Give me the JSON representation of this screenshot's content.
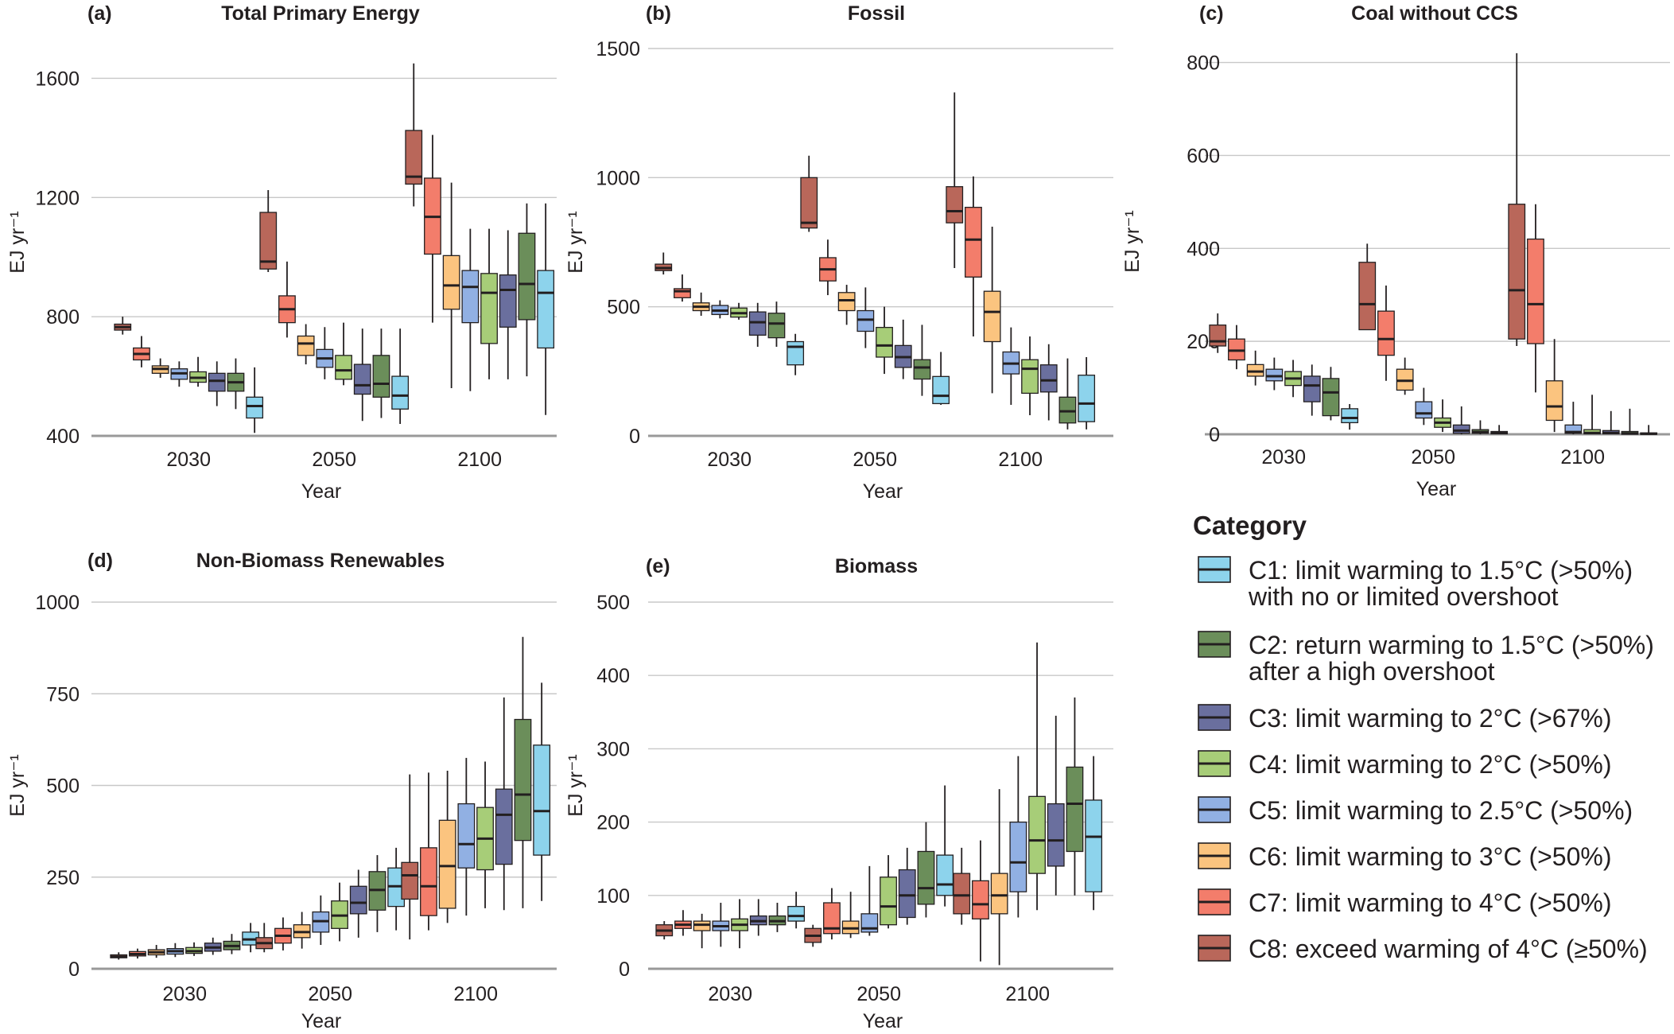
{
  "legend": {
    "title": "Category",
    "items": [
      {
        "code": "C1",
        "line1": "C1: limit warming to 1.5°C (>50%)",
        "line2": "with no or limited overshoot",
        "color": "#8dd3ec"
      },
      {
        "code": "C2",
        "line1": "C2: return warming to 1.5°C (>50%)",
        "line2": "after a high overshoot",
        "color": "#6b8e5a"
      },
      {
        "code": "C3",
        "line1": "C3: limit warming to 2°C (>67%)",
        "line2": "",
        "color": "#6a6f9e"
      },
      {
        "code": "C4",
        "line1": "C4: limit warming to 2°C (>50%)",
        "line2": "",
        "color": "#a7cd78"
      },
      {
        "code": "C5",
        "line1": "C5: limit warming to 2.5°C (>50%)",
        "line2": "",
        "color": "#91b0e3"
      },
      {
        "code": "C6",
        "line1": "C6: limit warming to 3°C (>50%)",
        "line2": "",
        "color": "#fbc47f"
      },
      {
        "code": "C7",
        "line1": "C7: limit warming to 4°C (>50%)",
        "line2": "",
        "color": "#f37d6b"
      },
      {
        "code": "C8",
        "line1": "C8: exceed warming of 4°C (≥50%)",
        "line2": "",
        "color": "#b9675a"
      }
    ]
  },
  "chart_data": [
    {
      "type": "box",
      "letter": "(a)",
      "title": "Total Primary Energy",
      "xlabel": "Year",
      "ylabel": "EJ yr⁻¹",
      "ylim": [
        400,
        1700
      ],
      "yticks": [
        400,
        800,
        1200,
        1600
      ],
      "years": [
        "2030",
        "2050",
        "2100"
      ],
      "category_order": [
        "C8",
        "C7",
        "C6",
        "C5",
        "C4",
        "C3",
        "C2",
        "C1"
      ],
      "boxes": {
        "2030": [
          [
            740,
            755,
            765,
            775,
            800
          ],
          [
            630,
            655,
            675,
            695,
            735
          ],
          [
            595,
            610,
            625,
            635,
            660
          ],
          [
            565,
            590,
            610,
            625,
            650
          ],
          [
            565,
            580,
            595,
            615,
            665
          ],
          [
            500,
            550,
            585,
            610,
            650
          ],
          [
            490,
            550,
            580,
            610,
            660
          ],
          [
            410,
            460,
            500,
            530,
            630
          ]
        ],
        "2050": [
          [
            950,
            960,
            985,
            1150,
            1225
          ],
          [
            730,
            780,
            825,
            870,
            985
          ],
          [
            640,
            670,
            710,
            735,
            775
          ],
          [
            590,
            630,
            660,
            690,
            765
          ],
          [
            570,
            590,
            620,
            670,
            780
          ],
          [
            450,
            540,
            570,
            640,
            760
          ],
          [
            460,
            530,
            575,
            670,
            760
          ],
          [
            440,
            490,
            535,
            600,
            760
          ]
        ],
        "2100": [
          [
            1170,
            1245,
            1270,
            1425,
            1650
          ],
          [
            780,
            1010,
            1135,
            1265,
            1410
          ],
          [
            560,
            825,
            905,
            1005,
            1250
          ],
          [
            550,
            780,
            900,
            955,
            1095
          ],
          [
            590,
            710,
            880,
            945,
            1095
          ],
          [
            590,
            765,
            890,
            940,
            1090
          ],
          [
            600,
            790,
            910,
            1080,
            1180
          ],
          [
            470,
            695,
            880,
            955,
            1180
          ]
        ]
      }
    },
    {
      "type": "box",
      "letter": "(b)",
      "title": "Fossil",
      "xlabel": "Year",
      "ylabel": "EJ yr⁻¹",
      "ylim": [
        0,
        1500
      ],
      "yticks": [
        0,
        500,
        1000,
        1500
      ],
      "years": [
        "2030",
        "2050",
        "2100"
      ],
      "category_order": [
        "C8",
        "C7",
        "C6",
        "C5",
        "C4",
        "C3",
        "C2",
        "C1"
      ],
      "boxes": {
        "2030": [
          [
            625,
            640,
            650,
            665,
            710
          ],
          [
            520,
            535,
            560,
            570,
            625
          ],
          [
            465,
            485,
            500,
            515,
            555
          ],
          [
            455,
            470,
            485,
            505,
            525
          ],
          [
            450,
            460,
            475,
            495,
            515
          ],
          [
            345,
            390,
            440,
            480,
            515
          ],
          [
            345,
            380,
            435,
            475,
            520
          ],
          [
            235,
            275,
            345,
            365,
            395
          ]
        ],
        "2050": [
          [
            790,
            805,
            825,
            1000,
            1085
          ],
          [
            545,
            600,
            645,
            690,
            760
          ],
          [
            430,
            485,
            525,
            555,
            585
          ],
          [
            340,
            405,
            450,
            485,
            575
          ],
          [
            240,
            305,
            350,
            420,
            500
          ],
          [
            220,
            265,
            305,
            350,
            450
          ],
          [
            155,
            220,
            265,
            295,
            430
          ],
          [
            120,
            125,
            155,
            230,
            325
          ]
        ],
        "2100": [
          [
            650,
            825,
            870,
            965,
            1330
          ],
          [
            385,
            615,
            760,
            885,
            1005
          ],
          [
            165,
            365,
            480,
            560,
            810
          ],
          [
            120,
            240,
            280,
            325,
            420
          ],
          [
            80,
            165,
            260,
            295,
            385
          ],
          [
            60,
            170,
            215,
            275,
            355
          ],
          [
            25,
            50,
            95,
            150,
            300
          ],
          [
            25,
            55,
            125,
            235,
            305
          ]
        ]
      }
    },
    {
      "type": "box",
      "letter": "(c)",
      "title": "Coal without CCS",
      "xlabel": "Year",
      "ylabel": "EJ yr⁻¹",
      "ylim": [
        0,
        830
      ],
      "yticks": [
        0,
        200,
        400,
        600,
        800
      ],
      "years": [
        "2030",
        "2050",
        "2100"
      ],
      "category_order": [
        "C8",
        "C7",
        "C6",
        "C5",
        "C4",
        "C3",
        "C2",
        "C1"
      ],
      "boxes": {
        "2030": [
          [
            175,
            190,
            200,
            235,
            260
          ],
          [
            140,
            160,
            180,
            205,
            235
          ],
          [
            105,
            125,
            135,
            150,
            180
          ],
          [
            95,
            115,
            125,
            140,
            165
          ],
          [
            80,
            105,
            120,
            135,
            160
          ],
          [
            40,
            70,
            105,
            125,
            150
          ],
          [
            30,
            40,
            90,
            120,
            145
          ],
          [
            10,
            25,
            35,
            55,
            65
          ]
        ],
        "2050": [
          [
            225,
            225,
            280,
            370,
            410
          ],
          [
            115,
            170,
            205,
            265,
            320
          ],
          [
            85,
            95,
            115,
            140,
            165
          ],
          [
            20,
            35,
            45,
            70,
            100
          ],
          [
            5,
            15,
            25,
            35,
            75
          ],
          [
            0,
            2,
            8,
            20,
            60
          ],
          [
            0,
            2,
            5,
            10,
            30
          ],
          [
            0,
            1,
            3,
            6,
            20
          ]
        ],
        "2100": [
          [
            190,
            205,
            310,
            495,
            820
          ],
          [
            90,
            195,
            280,
            420,
            495
          ],
          [
            5,
            30,
            60,
            115,
            205
          ],
          [
            0,
            2,
            5,
            20,
            70
          ],
          [
            0,
            1,
            3,
            10,
            85
          ],
          [
            0,
            1,
            3,
            8,
            50
          ],
          [
            0,
            0,
            2,
            6,
            55
          ],
          [
            0,
            0,
            1,
            3,
            20
          ]
        ]
      }
    },
    {
      "type": "box",
      "letter": "(d)",
      "title": "Non-Biomass Renewables",
      "xlabel": "Year",
      "ylabel": "EJ yr⁻¹",
      "ylim": [
        0,
        1000
      ],
      "yticks": [
        0,
        250,
        500,
        750,
        1000
      ],
      "years": [
        "2030",
        "2050",
        "2100"
      ],
      "category_order": [
        "C8",
        "C7",
        "C6",
        "C5",
        "C4",
        "C3",
        "C2",
        "C1"
      ],
      "boxes": {
        "2030": [
          [
            25,
            30,
            33,
            38,
            45
          ],
          [
            28,
            35,
            40,
            47,
            55
          ],
          [
            30,
            38,
            45,
            52,
            65
          ],
          [
            32,
            40,
            48,
            55,
            70
          ],
          [
            35,
            42,
            48,
            58,
            72
          ],
          [
            38,
            48,
            58,
            70,
            85
          ],
          [
            40,
            52,
            62,
            75,
            95
          ],
          [
            45,
            65,
            80,
            100,
            125
          ]
        ],
        "2050": [
          [
            45,
            55,
            70,
            85,
            125
          ],
          [
            50,
            70,
            90,
            110,
            140
          ],
          [
            55,
            85,
            100,
            120,
            155
          ],
          [
            65,
            100,
            130,
            155,
            200
          ],
          [
            75,
            110,
            145,
            185,
            235
          ],
          [
            85,
            150,
            180,
            225,
            270
          ],
          [
            100,
            160,
            215,
            265,
            310
          ],
          [
            105,
            170,
            225,
            275,
            330
          ]
        ],
        "2100": [
          [
            80,
            190,
            255,
            290,
            530
          ],
          [
            105,
            145,
            225,
            330,
            535
          ],
          [
            125,
            165,
            280,
            405,
            540
          ],
          [
            145,
            275,
            340,
            450,
            575
          ],
          [
            165,
            270,
            355,
            440,
            565
          ],
          [
            160,
            285,
            420,
            490,
            740
          ],
          [
            165,
            350,
            475,
            680,
            905
          ],
          [
            185,
            310,
            430,
            610,
            780
          ]
        ]
      }
    },
    {
      "type": "box",
      "letter": "(e)",
      "title": "Biomass",
      "xlabel": "Year",
      "ylabel": "EJ yr⁻¹",
      "ylim": [
        0,
        500
      ],
      "yticks": [
        0,
        100,
        200,
        300,
        400,
        500
      ],
      "years": [
        "2030",
        "2050",
        "2100"
      ],
      "category_order": [
        "C8",
        "C7",
        "C6",
        "C5",
        "C4",
        "C3",
        "C2",
        "C1"
      ],
      "boxes": {
        "2030": [
          [
            40,
            45,
            52,
            60,
            65
          ],
          [
            45,
            55,
            60,
            65,
            80
          ],
          [
            28,
            52,
            60,
            65,
            75
          ],
          [
            30,
            52,
            58,
            65,
            90
          ],
          [
            28,
            52,
            60,
            68,
            95
          ],
          [
            45,
            60,
            65,
            72,
            95
          ],
          [
            50,
            60,
            65,
            72,
            90
          ],
          [
            55,
            65,
            72,
            85,
            105
          ]
        ],
        "2050": [
          [
            30,
            36,
            45,
            55,
            60
          ],
          [
            40,
            48,
            55,
            90,
            110
          ],
          [
            42,
            48,
            55,
            65,
            105
          ],
          [
            45,
            50,
            55,
            75,
            140
          ],
          [
            55,
            60,
            85,
            125,
            155
          ],
          [
            60,
            70,
            100,
            135,
            165
          ],
          [
            70,
            88,
            110,
            160,
            200
          ],
          [
            85,
            100,
            115,
            155,
            250
          ]
        ],
        "2100": [
          [
            60,
            75,
            100,
            130,
            165
          ],
          [
            10,
            68,
            88,
            120,
            175
          ],
          [
            5,
            75,
            100,
            130,
            245
          ],
          [
            70,
            105,
            145,
            200,
            290
          ],
          [
            80,
            130,
            175,
            235,
            445
          ],
          [
            100,
            140,
            175,
            225,
            345
          ],
          [
            100,
            160,
            225,
            275,
            370
          ],
          [
            80,
            105,
            180,
            230,
            290
          ]
        ]
      }
    }
  ]
}
